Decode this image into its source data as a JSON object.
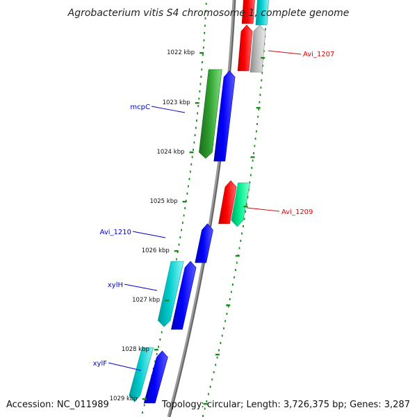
{
  "title": "Agrobacterium vitis S4 chromosome 1, complete genome",
  "footer": {
    "accession": "Accession: NC_011989",
    "summary": "Topology: circular; Length: 3,726,375 bp; Genes: 3,287"
  },
  "colors": {
    "backbone": "#8c8c8c",
    "tick": "#1a8a1a",
    "label_blue": "#0000cc",
    "label_red": "#dd0000"
  },
  "scale": {
    "ticks": [
      "1022 kbp",
      "1023 kbp",
      "1024 kbp",
      "1025 kbp",
      "1026 kbp",
      "1027 kbp",
      "1028 kbp",
      "1029 kbp"
    ]
  },
  "gene_labels": [
    {
      "text": "Avi_1207",
      "color": "red"
    },
    {
      "text": "mcpC",
      "color": "blue"
    },
    {
      "text": "Avi_1209",
      "color": "red"
    },
    {
      "text": "Avi_1210",
      "color": "blue"
    },
    {
      "text": "xylH",
      "color": "blue"
    },
    {
      "text": "xylF",
      "color": "blue"
    }
  ],
  "genes": [
    {
      "strand": "+",
      "color": "red"
    },
    {
      "strand": "+",
      "color": "cyan"
    },
    {
      "strand": "+",
      "color": "red"
    },
    {
      "strand": "+",
      "color": "gray"
    },
    {
      "strand": "-",
      "color": "green"
    },
    {
      "strand": "+",
      "color": "blue"
    },
    {
      "strand": "+",
      "color": "red"
    },
    {
      "strand": "-",
      "color": "spring-green"
    },
    {
      "strand": "+",
      "color": "blue"
    },
    {
      "strand": "-",
      "color": "cyan"
    },
    {
      "strand": "+",
      "color": "blue"
    },
    {
      "strand": "-",
      "color": "cyan"
    },
    {
      "strand": "+",
      "color": "blue"
    }
  ]
}
